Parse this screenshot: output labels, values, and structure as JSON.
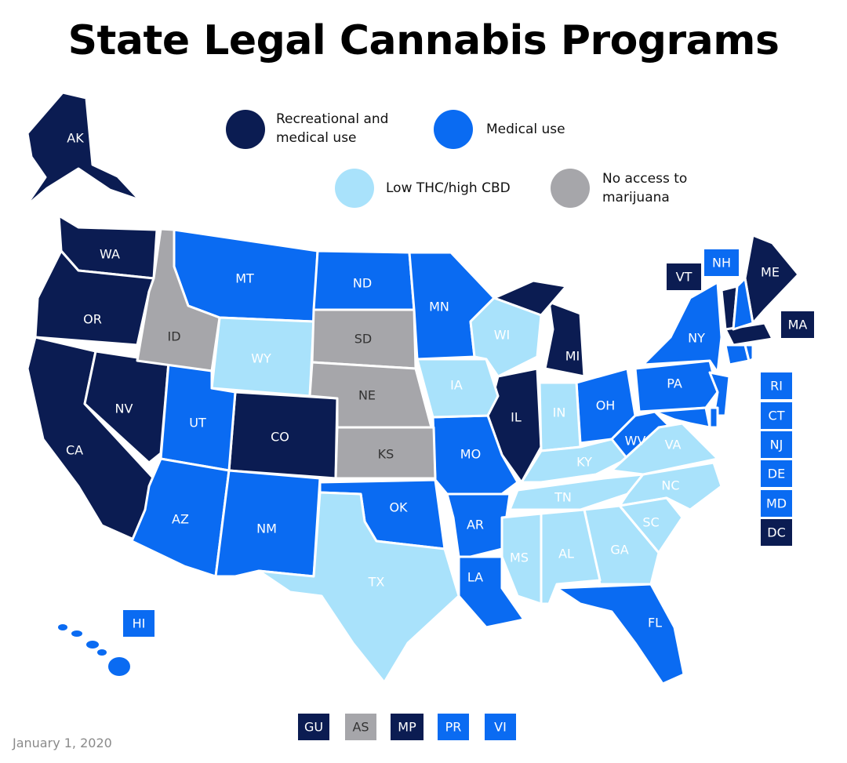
{
  "title": "State Legal Cannabis Programs",
  "date": "January 1, 2020",
  "groups": [
    {
      "label": "Recreational and medical use",
      "color": "#0b1c52",
      "states": [
        "AK",
        "WA",
        "OR",
        "CA",
        "NV",
        "CO",
        "IL",
        "MI",
        "ME",
        "VT",
        "MA",
        "DC",
        "GU",
        "MP"
      ]
    },
    {
      "label": "Medical use",
      "color": "#0a6bf2",
      "states": [
        "MT",
        "ND",
        "MN",
        "UT",
        "AZ",
        "NM",
        "OK",
        "MO",
        "AR",
        "LA",
        "FL",
        "OH",
        "WV",
        "PA",
        "NY",
        "NJ",
        "MD",
        "DE",
        "NH",
        "CT",
        "RI",
        "HI",
        "PR",
        "VI"
      ]
    },
    {
      "label": "Low THC/high CBD",
      "color": "#a9e2fb",
      "states": [
        "WY",
        "WI",
        "IA",
        "IN",
        "KY",
        "TN",
        "NC",
        "VA",
        "SC",
        "GA",
        "AL",
        "MS",
        "TX"
      ]
    },
    {
      "label": "No access to marijuana",
      "color": "#a6a6aa",
      "states": [
        "ID",
        "SD",
        "NE",
        "KS",
        "AS"
      ]
    }
  ]
}
